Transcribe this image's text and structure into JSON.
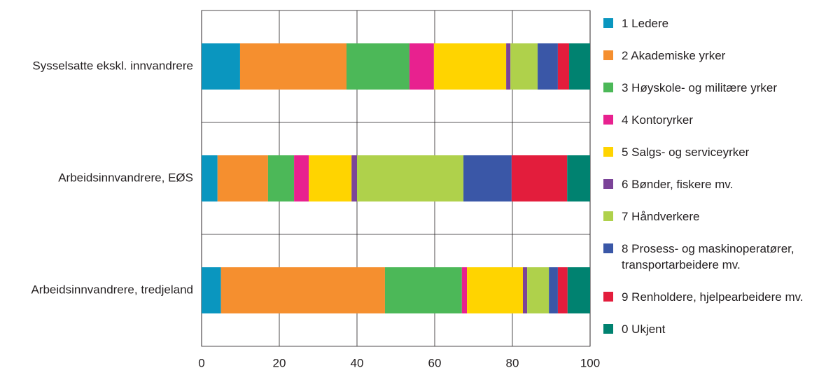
{
  "chart_data": {
    "type": "stacked-barh",
    "categories": [
      "Sysselsatte ekskl. innvandrere",
      "Arbeidsinnvandrere, EØS",
      "Arbeidsinnvandrere, tredjeland"
    ],
    "series": [
      {
        "name": "1 Ledere",
        "color": "#0a96bf",
        "values": [
          9.9,
          4.1,
          5.0
        ]
      },
      {
        "name": "2 Akademiske yrker",
        "color": "#f58f2f",
        "values": [
          27.4,
          13.0,
          42.2
        ]
      },
      {
        "name": "3 Høyskole- og militære yrker",
        "color": "#4cb858",
        "values": [
          16.2,
          6.7,
          19.8
        ]
      },
      {
        "name": "4 Kontoryrker",
        "color": "#e8218f",
        "values": [
          6.3,
          3.8,
          1.3
        ]
      },
      {
        "name": "5 Salgs- og serviceyrker",
        "color": "#ffd400",
        "values": [
          18.6,
          11.0,
          14.4
        ]
      },
      {
        "name": "6 Bønder, fiskere mv.",
        "color": "#7b4398",
        "values": [
          1.1,
          1.4,
          1.1
        ]
      },
      {
        "name": "7 Håndverkere",
        "color": "#afd14b",
        "values": [
          7.0,
          27.4,
          5.6
        ]
      },
      {
        "name": "8 Prosess- og maskinoperatører,\ntransportarbeidere mv.",
        "color": "#3a57a7",
        "values": [
          5.2,
          12.4,
          2.3
        ]
      },
      {
        "name": "9 Renholdere, hjelpearbeidere mv.",
        "color": "#e31d3c",
        "values": [
          2.9,
          14.3,
          2.5
        ]
      },
      {
        "name": "0 Ukjent",
        "color": "#008270",
        "values": [
          5.4,
          5.9,
          5.8
        ]
      }
    ],
    "xlim": [
      0,
      100
    ],
    "xticks": [
      0,
      20,
      40,
      60,
      80,
      100
    ],
    "grid": true
  }
}
